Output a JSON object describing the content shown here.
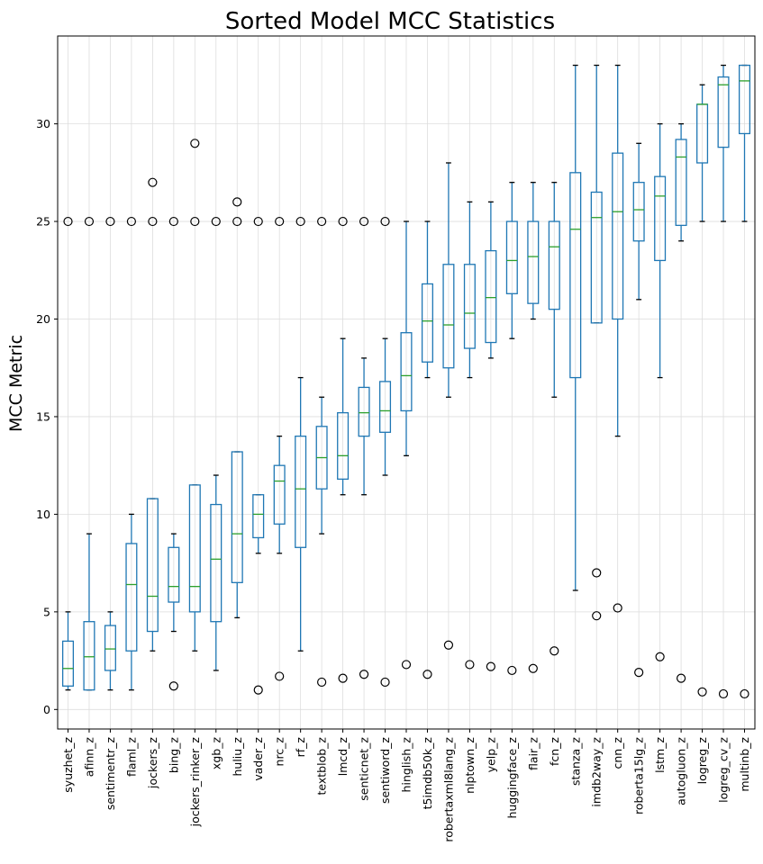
{
  "chart_data": {
    "type": "boxplot",
    "title": "Sorted Model MCC Statistics",
    "xlabel": "",
    "ylabel": "MCC Metric",
    "ylim": [
      -1.0,
      34.5
    ],
    "yticks": [
      0,
      5,
      10,
      15,
      20,
      25,
      30
    ],
    "grid": true,
    "colors": {
      "box": "#1f77b4",
      "median": "#2ca02c",
      "flier": "#000000",
      "grid": "#dddddd",
      "axis": "#000000"
    },
    "categories": [
      "syuzhet_z",
      "afinn_z",
      "sentimentr_z",
      "flaml_z",
      "jockers_z",
      "bing_z",
      "jockers_rinker_z",
      "xgb_z",
      "huliu_z",
      "vader_z",
      "nrc_z",
      "rf_z",
      "textblob_z",
      "lmcd_z",
      "senticnet_z",
      "sentiword_z",
      "hinglish_z",
      "t5imdb50k_z",
      "robertaxml8lang_z",
      "nlptown_z",
      "yelp_z",
      "huggingface_z",
      "flair_z",
      "fcn_z",
      "stanza_z",
      "imdb2way_z",
      "cnn_z",
      "roberta15lg_z",
      "lstm_z",
      "autogluon_z",
      "logreg_z",
      "logreg_cv_z",
      "multinb_z"
    ],
    "boxes": [
      {
        "whislo": 1.0,
        "q1": 1.2,
        "med": 2.1,
        "q3": 3.5,
        "whishi": 5.0,
        "fliers": [
          25
        ]
      },
      {
        "whislo": 1.0,
        "q1": 1.0,
        "med": 2.7,
        "q3": 4.5,
        "whishi": 9.0,
        "fliers": [
          25
        ]
      },
      {
        "whislo": 1.0,
        "q1": 2.0,
        "med": 3.1,
        "q3": 4.3,
        "whishi": 5.0,
        "fliers": [
          25
        ]
      },
      {
        "whislo": 1.0,
        "q1": 3.0,
        "med": 6.4,
        "q3": 8.5,
        "whishi": 10.0,
        "fliers": [
          25
        ]
      },
      {
        "whislo": 3.0,
        "q1": 4.0,
        "med": 5.8,
        "q3": 10.8,
        "whishi": 10.8,
        "fliers": [
          25,
          27
        ]
      },
      {
        "whislo": 4.0,
        "q1": 5.5,
        "med": 6.3,
        "q3": 8.3,
        "whishi": 9.0,
        "fliers": [
          1.2,
          25
        ]
      },
      {
        "whislo": 3.0,
        "q1": 5.0,
        "med": 6.3,
        "q3": 11.5,
        "whishi": 11.5,
        "fliers": [
          25,
          29
        ]
      },
      {
        "whislo": 2.0,
        "q1": 4.5,
        "med": 7.7,
        "q3": 10.5,
        "whishi": 12.0,
        "fliers": [
          25
        ]
      },
      {
        "whislo": 4.7,
        "q1": 6.5,
        "med": 9.0,
        "q3": 13.2,
        "whishi": 13.2,
        "fliers": [
          25,
          26
        ]
      },
      {
        "whislo": 8.0,
        "q1": 8.8,
        "med": 10.0,
        "q3": 11.0,
        "whishi": 11.0,
        "fliers": [
          1.0,
          25
        ]
      },
      {
        "whislo": 8.0,
        "q1": 9.5,
        "med": 11.7,
        "q3": 12.5,
        "whishi": 14.0,
        "fliers": [
          1.7,
          25
        ]
      },
      {
        "whislo": 3.0,
        "q1": 8.3,
        "med": 11.3,
        "q3": 14.0,
        "whishi": 17.0,
        "fliers": [
          25
        ]
      },
      {
        "whislo": 9.0,
        "q1": 11.3,
        "med": 12.9,
        "q3": 14.5,
        "whishi": 16.0,
        "fliers": [
          1.4,
          25
        ]
      },
      {
        "whislo": 11.0,
        "q1": 11.8,
        "med": 13.0,
        "q3": 15.2,
        "whishi": 19.0,
        "fliers": [
          1.6,
          25
        ]
      },
      {
        "whislo": 11.0,
        "q1": 14.0,
        "med": 15.2,
        "q3": 16.5,
        "whishi": 18.0,
        "fliers": [
          1.8,
          25
        ]
      },
      {
        "whislo": 12.0,
        "q1": 14.2,
        "med": 15.3,
        "q3": 16.8,
        "whishi": 19.0,
        "fliers": [
          1.4,
          25
        ]
      },
      {
        "whislo": 13.0,
        "q1": 15.3,
        "med": 17.1,
        "q3": 19.3,
        "whishi": 25.0,
        "fliers": [
          2.3
        ]
      },
      {
        "whislo": 17.0,
        "q1": 17.8,
        "med": 19.9,
        "q3": 21.8,
        "whishi": 25.0,
        "fliers": [
          1.8
        ]
      },
      {
        "whislo": 16.0,
        "q1": 17.5,
        "med": 19.7,
        "q3": 22.8,
        "whishi": 28.0,
        "fliers": [
          3.3
        ]
      },
      {
        "whislo": 17.0,
        "q1": 18.5,
        "med": 20.3,
        "q3": 22.8,
        "whishi": 26.0,
        "fliers": [
          2.3
        ]
      },
      {
        "whislo": 18.0,
        "q1": 18.8,
        "med": 21.1,
        "q3": 23.5,
        "whishi": 26.0,
        "fliers": [
          2.2
        ]
      },
      {
        "whislo": 19.0,
        "q1": 21.3,
        "med": 23.0,
        "q3": 25.0,
        "whishi": 27.0,
        "fliers": [
          2.0
        ]
      },
      {
        "whislo": 20.0,
        "q1": 20.8,
        "med": 23.2,
        "q3": 25.0,
        "whishi": 27.0,
        "fliers": [
          2.1
        ]
      },
      {
        "whislo": 16.0,
        "q1": 20.5,
        "med": 23.7,
        "q3": 25.0,
        "whishi": 27.0,
        "fliers": [
          3.0
        ]
      },
      {
        "whislo": 6.1,
        "q1": 17.0,
        "med": 24.6,
        "q3": 27.5,
        "whishi": 33.0,
        "fliers": []
      },
      {
        "whislo": 19.8,
        "q1": 19.8,
        "med": 25.2,
        "q3": 26.5,
        "whishi": 33.0,
        "fliers": [
          4.8,
          7.0
        ]
      },
      {
        "whislo": 14.0,
        "q1": 20.0,
        "med": 25.5,
        "q3": 28.5,
        "whishi": 33.0,
        "fliers": [
          5.2
        ]
      },
      {
        "whislo": 21.0,
        "q1": 24.0,
        "med": 25.6,
        "q3": 27.0,
        "whishi": 29.0,
        "fliers": [
          1.9
        ]
      },
      {
        "whislo": 17.0,
        "q1": 23.0,
        "med": 26.3,
        "q3": 27.3,
        "whishi": 30.0,
        "fliers": [
          2.7
        ]
      },
      {
        "whislo": 24.0,
        "q1": 24.8,
        "med": 28.3,
        "q3": 29.2,
        "whishi": 30.0,
        "fliers": [
          1.6
        ]
      },
      {
        "whislo": 25.0,
        "q1": 28.0,
        "med": 31.0,
        "q3": 31.0,
        "whishi": 32.0,
        "fliers": [
          0.9
        ]
      },
      {
        "whislo": 25.0,
        "q1": 28.8,
        "med": 32.0,
        "q3": 32.4,
        "whishi": 33.0,
        "fliers": [
          0.8
        ]
      },
      {
        "whislo": 25.0,
        "q1": 29.5,
        "med": 32.2,
        "q3": 33.0,
        "whishi": 33.0,
        "fliers": [
          0.8
        ]
      }
    ]
  }
}
